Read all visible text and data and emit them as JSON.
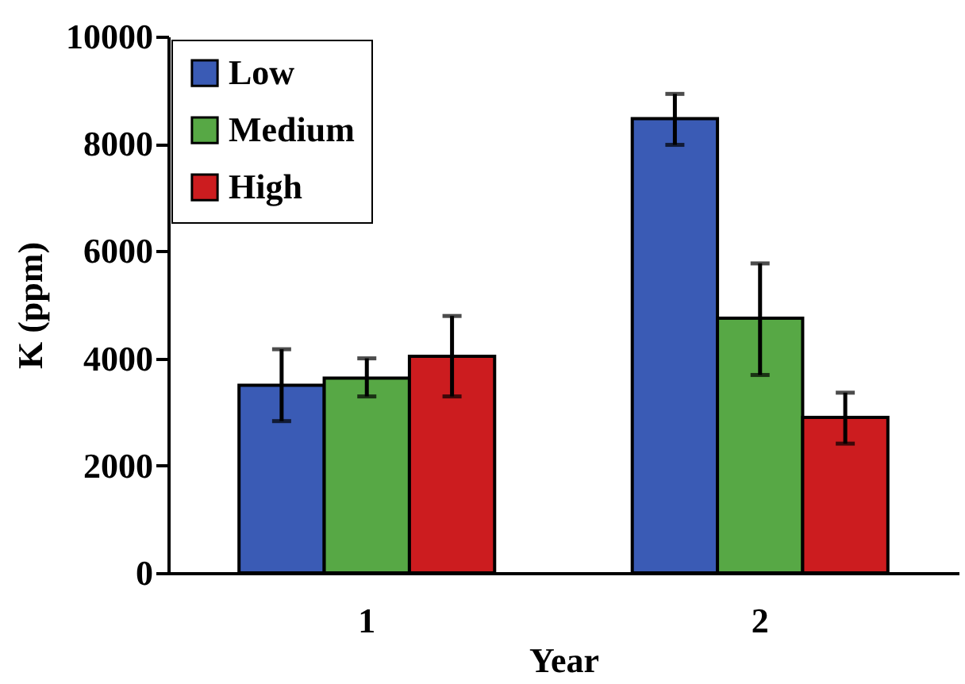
{
  "chart_data": {
    "type": "bar",
    "xlabel": "Year",
    "ylabel": "K (ppm)",
    "categories": [
      "1",
      "2"
    ],
    "series": [
      {
        "name": "Low",
        "color": "#3a5bb5",
        "values": [
          3500,
          8470
        ],
        "errors": [
          [
            2830,
            4170
          ],
          [
            7980,
            8930
          ]
        ]
      },
      {
        "name": "Medium",
        "color": "#57a845",
        "values": [
          3630,
          4750
        ],
        "errors": [
          [
            3290,
            4000
          ],
          [
            3690,
            5770
          ]
        ]
      },
      {
        "name": "High",
        "color": "#cc1c1f",
        "values": [
          4040,
          2900
        ],
        "errors": [
          [
            3290,
            4790
          ],
          [
            2410,
            3360
          ]
        ]
      }
    ],
    "ylim": [
      0,
      10000
    ],
    "yticks": [
      0,
      2000,
      4000,
      6000,
      8000,
      10000
    ],
    "grid": false,
    "legend": "top left"
  }
}
